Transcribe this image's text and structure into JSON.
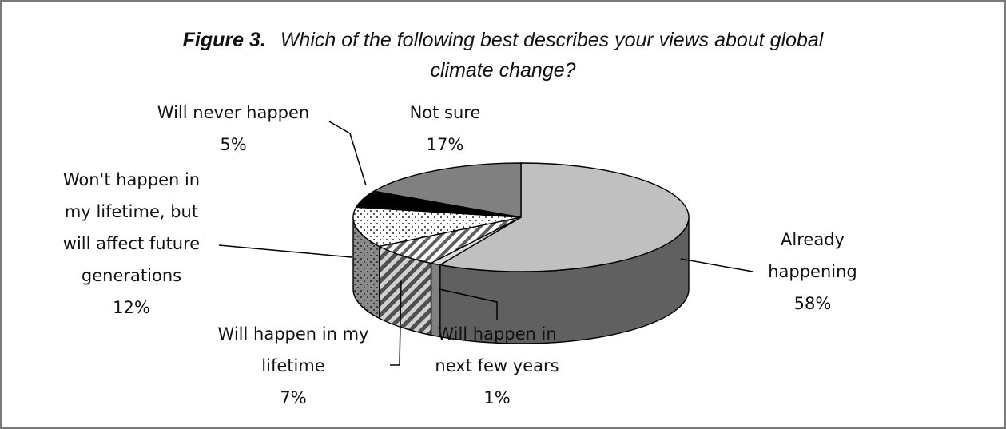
{
  "figure_label": "Figure 3.",
  "title_line1": "Which of the following best describes your views about global",
  "title_line2": "climate change?",
  "chart_data": {
    "type": "pie",
    "title": "Figure 3. Which of the following best describes your views about global climate change?",
    "three_d": true,
    "legend": "none",
    "slices": [
      {
        "label": "Already happening",
        "value": 58,
        "value_label": "58%",
        "color": "#c0c0c0",
        "side_color": "#606060",
        "pattern": "solid"
      },
      {
        "label": "Will happen in next few years",
        "value": 1,
        "value_label": "1%",
        "color": "#d9d9d9",
        "side_color": "#808080",
        "pattern": "solid"
      },
      {
        "label": "Will happen in my lifetime",
        "value": 7,
        "value_label": "7%",
        "color": "#ffffff",
        "side_color": "#6a6a6a",
        "pattern": "diagonal-stripes"
      },
      {
        "label": "Won't happen in my lifetime, but will affect future generations",
        "value": 12,
        "value_label": "12%",
        "color": "#ffffff",
        "side_color": "#7f7f7f",
        "pattern": "dots"
      },
      {
        "label": "Will never happen",
        "value": 5,
        "value_label": "5%",
        "color": "#000000",
        "side_color": "#000000",
        "pattern": "solid"
      },
      {
        "label": "Not sure",
        "value": 17,
        "value_label": "17%",
        "color": "#808080",
        "side_color": "#505050",
        "pattern": "solid"
      }
    ],
    "label_lines": {
      "already": [
        "Already",
        "happening"
      ],
      "next_few": [
        "Will happen in",
        "next few years"
      ],
      "my_lifetime": [
        "Will happen in my",
        "lifetime"
      ],
      "future": [
        "Won't happen in",
        "my lifetime, but",
        "will affect future",
        "generations"
      ],
      "never": [
        "Will never happen"
      ],
      "not_sure": [
        "Not sure"
      ]
    }
  }
}
